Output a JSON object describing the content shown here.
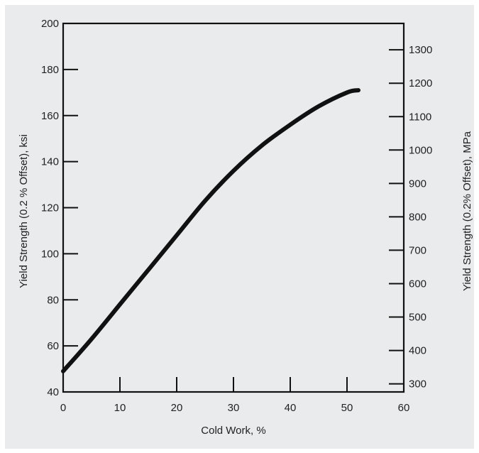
{
  "chart_data": {
    "type": "line",
    "title": "",
    "xlabel": "Cold Work, %",
    "ylabel": "Yield Strength (0.2 % Offset), ksi",
    "y2label": "Yield Strength (0.2% Offset), MPa",
    "xlim": [
      0,
      60
    ],
    "ylim": [
      40,
      200
    ],
    "y2lim": [
      275.8,
      1379
    ],
    "x_ticks": [
      "0",
      "10",
      "20",
      "30",
      "40",
      "50",
      "60"
    ],
    "y_ticks": [
      "40",
      "60",
      "80",
      "100",
      "120",
      "140",
      "160",
      "180",
      "200"
    ],
    "y2_ticks": [
      "300",
      "400",
      "500",
      "600",
      "700",
      "800",
      "900",
      "1000",
      "1100",
      "1200",
      "1300"
    ],
    "grid": false,
    "background": "#e9ebec",
    "line_color": "#111111",
    "series": [
      {
        "x": [
          0,
          5,
          10,
          15,
          20,
          25,
          30,
          35,
          40,
          45,
          50,
          52
        ],
        "values": [
          49,
          63,
          78,
          93,
          108,
          123,
          136,
          147,
          156,
          164,
          170,
          171
        ]
      }
    ]
  }
}
